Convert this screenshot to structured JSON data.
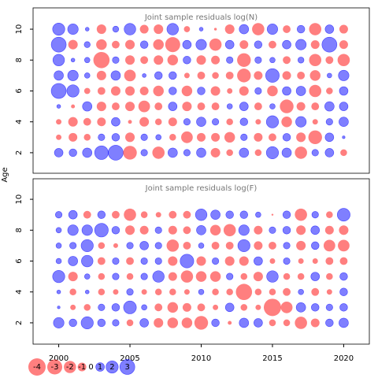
{
  "chart_data": {
    "type": "bubble",
    "ylabel": "Age",
    "xlim": [
      1998.2,
      2021.8
    ],
    "xticks": [
      2000,
      2005,
      2010,
      2015,
      2020
    ],
    "x": [
      2000,
      2001,
      2002,
      2003,
      2004,
      2005,
      2006,
      2007,
      2008,
      2009,
      2010,
      2011,
      2012,
      2013,
      2014,
      2015,
      2016,
      2017,
      2018,
      2019,
      2020
    ],
    "negative_color": "#ff0000",
    "positive_color": "#0000ff",
    "legend": [
      -4,
      -3,
      -2,
      -1,
      0,
      1,
      2,
      3
    ],
    "panels": [
      {
        "title": "Joint sample residuals log(N)",
        "ylim": [
          0.67,
          11.38
        ],
        "yticks": [
          2,
          4,
          6,
          8,
          10
        ],
        "y": [
          2,
          3,
          4,
          5,
          6,
          7,
          8,
          9,
          10
        ],
        "values": [
          [
            1,
            0.8,
            1.2,
            2.5,
            3,
            -2.5,
            0.6,
            -2,
            1.2,
            0.6,
            1.2,
            -1.2,
            -0.6,
            1.2,
            -0.6,
            2,
            1.2,
            -2,
            0.6,
            1,
            -0.6
          ],
          [
            -0.4,
            -1,
            -0.6,
            0.6,
            0.8,
            -1.2,
            0.6,
            0.4,
            -0.6,
            -1.8,
            -1,
            -1,
            -1.5,
            0.6,
            -1,
            -0.8,
            0.8,
            -1.2,
            -2.5,
            1,
            0.1
          ],
          [
            -0.4,
            -1.2,
            -0.8,
            -1,
            1,
            -0.2,
            -1.2,
            -0.6,
            -1,
            0.6,
            1.2,
            0.6,
            -0.6,
            0.8,
            -0.4,
            2,
            -1.5,
            1.5,
            -0.4,
            0.6,
            1.2
          ],
          [
            0.2,
            -0.2,
            1.2,
            -1.2,
            -0.8,
            -1.2,
            -1.8,
            -0.8,
            1,
            -1.2,
            -0.8,
            -0.8,
            0.4,
            1,
            -0.8,
            0.4,
            -2.5,
            -1,
            -0.8,
            1.2,
            1
          ],
          [
            3,
            2,
            -0.5,
            -0.8,
            -1.2,
            -1.2,
            -1,
            -1.5,
            0.8,
            -1.5,
            0.8,
            -1.2,
            -0.4,
            -1.2,
            0.6,
            -1.5,
            1,
            1.2,
            -2,
            -0.6,
            1
          ],
          [
            1.2,
            1.5,
            0.4,
            -1.2,
            1.2,
            -1.8,
            0.2,
            0.8,
            0.8,
            -0.4,
            -0.8,
            -0.6,
            -0.8,
            -2.5,
            -1,
            2.5,
            -1,
            -0.8,
            -1.5,
            0.3,
            1.5
          ],
          [
            1.8,
            0.2,
            0.4,
            -3.5,
            0.6,
            -1.2,
            -0.8,
            -1.2,
            -1.5,
            0.8,
            -1.2,
            -1,
            0.6,
            -2.5,
            0.6,
            0.4,
            -0.8,
            0.5,
            -2,
            -0.8,
            -2
          ],
          [
            3,
            -1.2,
            0.5,
            -1.5,
            -0.8,
            -1.2,
            0.8,
            -1.5,
            -3,
            1,
            1.5,
            -2,
            1,
            -1,
            0.8,
            -0.8,
            1,
            1.5,
            -1,
            3,
            -1
          ],
          [
            2,
            1.5,
            0.2,
            -1.2,
            0.5,
            1.8,
            -1,
            -1.2,
            1.8,
            -0.5,
            0.2,
            -0.1,
            -1.2,
            1.2,
            -2,
            1.5,
            -0.8,
            0.8,
            -2,
            1,
            -1
          ]
        ]
      },
      {
        "title": "Joint sample residuals log(F)",
        "ylim": [
          0.62,
          11.33
        ],
        "yticks": [
          2,
          4,
          6,
          8,
          10
        ],
        "y": [
          2,
          3,
          4,
          5,
          6,
          7,
          8,
          9
        ],
        "values": [
          [
            1.5,
            0.8,
            2,
            0.8,
            0.6,
            -0.6,
            1,
            -1.2,
            -1.5,
            -1.5,
            -2.5,
            0.8,
            -0.2,
            1.2,
            1,
            -0.6,
            -0.6,
            -2,
            -1,
            0.8,
            1.2
          ],
          [
            0.1,
            -0.4,
            -0.6,
            0.6,
            0.8,
            2.2,
            0.4,
            -0.8,
            -1.5,
            -1,
            -0.8,
            -0.4,
            1,
            -0.6,
            -0.4,
            -4,
            -1.8,
            1.2,
            0.8,
            0.6,
            0.8
          ],
          [
            0.2,
            -0.6,
            0.2,
            -0.6,
            -0.4,
            0.6,
            -0.4,
            -0.6,
            -0.6,
            -0.4,
            0.4,
            -0.6,
            -0.6,
            -3.5,
            -0.6,
            -0.6,
            -0.8,
            0.4,
            -0.8,
            -0.4,
            0.8
          ],
          [
            2,
            -1.2,
            0.4,
            -0.6,
            0.6,
            -0.6,
            0.6,
            1.8,
            -1,
            -2,
            -1.5,
            -1.5,
            0.6,
            -0.6,
            -1.2,
            1.8,
            -0.6,
            -0.6,
            1,
            -0.6,
            0.8
          ],
          [
            0.4,
            1.2,
            1.8,
            -0.8,
            0.6,
            -0.8,
            0.6,
            0.6,
            -1.2,
            2.5,
            -1.2,
            0.6,
            -1.2,
            -1.2,
            1,
            -0.4,
            0.6,
            -0.4,
            -0.4,
            -0.8,
            -0.8
          ],
          [
            0.4,
            0.6,
            2,
            -0.6,
            -0.3,
            0.6,
            1,
            0.6,
            -2,
            -0.8,
            0.4,
            -0.8,
            -0.8,
            2,
            -1,
            -0.8,
            0.6,
            -1.2,
            0.8,
            -1.8,
            -1.8
          ],
          [
            0.4,
            1.5,
            1.5,
            2.5,
            0.8,
            -1.2,
            -1,
            0.6,
            -1,
            -0.8,
            1.2,
            -1.5,
            -2,
            1.5,
            -1,
            0.6,
            0.8,
            -1.2,
            1,
            -1,
            -1.2
          ],
          [
            0.6,
            1,
            -0.8,
            0.8,
            -0.8,
            -2,
            -0.6,
            -0.4,
            -0.8,
            -0.8,
            1.8,
            1.2,
            0.8,
            0.8,
            0.4,
            -0.05,
            0.8,
            -2,
            0.6,
            -0.6,
            2.2
          ]
        ]
      }
    ]
  }
}
